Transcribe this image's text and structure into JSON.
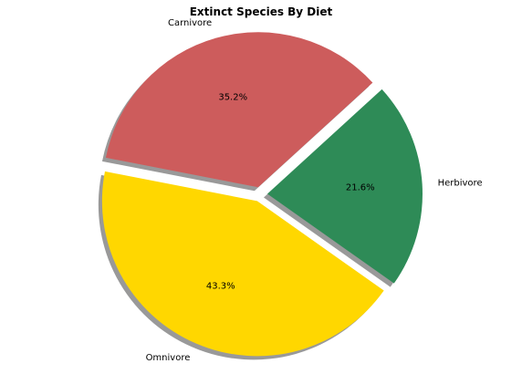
{
  "chart_data": {
    "type": "pie",
    "title": "Extinct Species By Diet",
    "categories": [
      "Omnivore",
      "Herbivore",
      "Carnivore"
    ],
    "values": [
      43.3,
      21.6,
      35.2
    ],
    "value_labels": [
      "43.3%",
      "21.6%",
      "35.2%"
    ],
    "colors": [
      "#ffd700",
      "#2e8b57",
      "#cd5c5c"
    ],
    "exploded": [
      true,
      true,
      true
    ],
    "shadow": true,
    "legend": "none"
  }
}
